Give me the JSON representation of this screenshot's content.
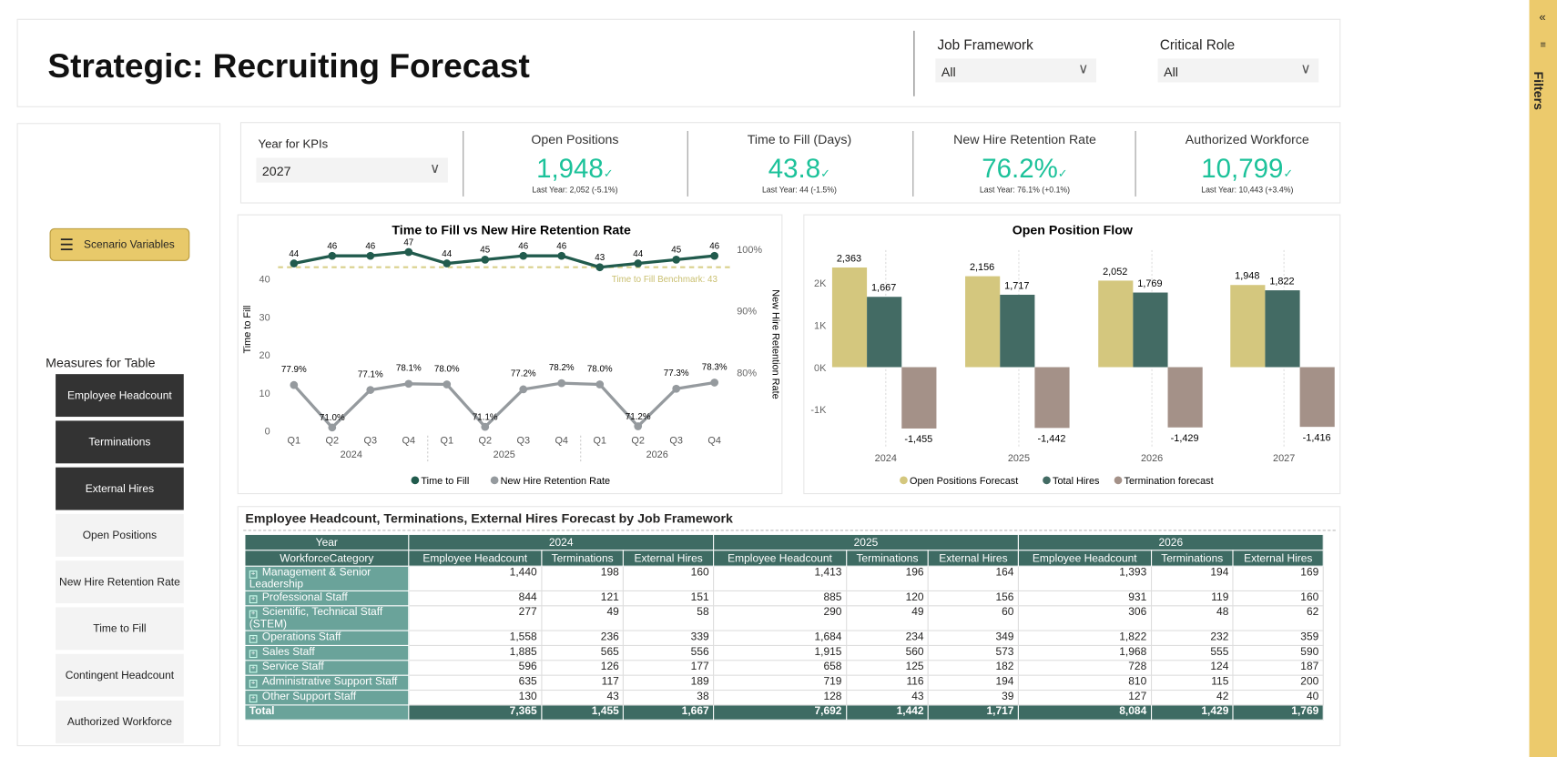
{
  "header": {
    "title": "Strategic: Recruiting Forecast",
    "filters": [
      {
        "label": "Job Framework",
        "value": "All"
      },
      {
        "label": "Critical Role",
        "value": "All"
      }
    ]
  },
  "filter_pane": {
    "label": "Filters",
    "collapse": "«"
  },
  "left": {
    "scenario_label": "Scenario Variables",
    "measures_title": "Measures for Table",
    "measures": [
      {
        "label": "Employee Headcount",
        "on": true
      },
      {
        "label": "Terminations",
        "on": true
      },
      {
        "label": "External Hires",
        "on": true
      },
      {
        "label": "Open Positions",
        "on": false
      },
      {
        "label": "New Hire Retention Rate",
        "on": false
      },
      {
        "label": "Time to Fill",
        "on": false
      },
      {
        "label": "Contingent Headcount",
        "on": false
      },
      {
        "label": "Authorized Workforce",
        "on": false
      }
    ]
  },
  "kpis": {
    "year_label": "Year for KPIs",
    "year_value": "2027",
    "cards": [
      {
        "title": "Open Positions",
        "value": "1,948",
        "sub": "Last Year: 2,052 (-5.1%)"
      },
      {
        "title": "Time to Fill (Days)",
        "value": "43.8",
        "sub": "Last Year: 44 (-1.5%)"
      },
      {
        "title": "New Hire Retention Rate",
        "value": "76.2%",
        "sub": "Last Year: 76.1% (+0.1%)"
      },
      {
        "title": "Authorized Workforce",
        "value": "10,799",
        "sub": "Last Year: 10,443 (+3.4%)"
      }
    ]
  },
  "chart_data": [
    {
      "type": "line",
      "title": "Time to Fill vs New Hire Retention Rate",
      "ylabel": "Time to Fill",
      "y2label": "New Hire Retention Rate",
      "x": [
        "Q1",
        "Q2",
        "Q3",
        "Q4",
        "Q1",
        "Q2",
        "Q3",
        "Q4",
        "Q1",
        "Q2",
        "Q3",
        "Q4"
      ],
      "x_groups": [
        "2024",
        "2025",
        "2026"
      ],
      "yticks": [
        "0",
        "10",
        "20",
        "30",
        "40"
      ],
      "y2ticks": [
        "80%",
        "90%",
        "100%"
      ],
      "benchmark": 43,
      "benchmark_label": "Time to Fill Benchmark: 43",
      "series": [
        {
          "name": "Time to Fill",
          "color": "#215b4d",
          "values": [
            44,
            46,
            46,
            47,
            44,
            45,
            46,
            46,
            43,
            44,
            45,
            46
          ]
        },
        {
          "name": "New Hire Retention Rate",
          "color": "#959a9e",
          "values": [
            77.9,
            71.0,
            77.1,
            78.1,
            78.0,
            71.1,
            77.2,
            78.2,
            78.0,
            71.2,
            77.3,
            78.3
          ],
          "labels": [
            "77.9%",
            "71.0%",
            "77.1%",
            "78.1%",
            "78.0%",
            "71.1%",
            "77.2%",
            "78.2%",
            "78.0%",
            "71.2%",
            "77.3%",
            "78.3%"
          ]
        }
      ]
    },
    {
      "type": "bar",
      "title": "Open Position Flow",
      "categories": [
        "2024",
        "2025",
        "2026",
        "2027"
      ],
      "yticks": [
        "-1K",
        "0K",
        "1K",
        "2K"
      ],
      "ylim": [
        -1700,
        2600
      ],
      "series": [
        {
          "name": "Open Positions Forecast",
          "color": "#d4c77e",
          "values": [
            2363,
            2156,
            2052,
            1948
          ]
        },
        {
          "name": "Total Hires",
          "color": "#436b64",
          "values": [
            1667,
            1717,
            1769,
            1822
          ]
        },
        {
          "name": "Termination forecast",
          "color": "#a49188",
          "values": [
            -1455,
            -1442,
            -1429,
            -1416
          ]
        }
      ]
    }
  ],
  "table": {
    "title": "Employee Headcount, Terminations, External Hires Forecast by Job Framework",
    "year_label": "Year",
    "cat_label": "WorkforceCategory",
    "years": [
      "2024",
      "2025",
      "2026"
    ],
    "measures": [
      "Employee Headcount",
      "Terminations",
      "External Hires"
    ],
    "rows": [
      {
        "cat": "Management & Senior Leadership",
        "v": [
          "1,440",
          "198",
          "160",
          "1,413",
          "196",
          "164",
          "1,393",
          "194",
          "169"
        ]
      },
      {
        "cat": "Professional Staff",
        "v": [
          "844",
          "121",
          "151",
          "885",
          "120",
          "156",
          "931",
          "119",
          "160"
        ]
      },
      {
        "cat": "Scientific, Technical Staff (STEM)",
        "v": [
          "277",
          "49",
          "58",
          "290",
          "49",
          "60",
          "306",
          "48",
          "62"
        ]
      },
      {
        "cat": "Operations Staff",
        "v": [
          "1,558",
          "236",
          "339",
          "1,684",
          "234",
          "349",
          "1,822",
          "232",
          "359"
        ]
      },
      {
        "cat": "Sales Staff",
        "v": [
          "1,885",
          "565",
          "556",
          "1,915",
          "560",
          "573",
          "1,968",
          "555",
          "590"
        ]
      },
      {
        "cat": "Service Staff",
        "v": [
          "596",
          "126",
          "177",
          "658",
          "125",
          "182",
          "728",
          "124",
          "187"
        ]
      },
      {
        "cat": "Administrative Support Staff",
        "v": [
          "635",
          "117",
          "189",
          "719",
          "116",
          "194",
          "810",
          "115",
          "200"
        ]
      },
      {
        "cat": "Other Support Staff",
        "v": [
          "130",
          "43",
          "38",
          "128",
          "43",
          "39",
          "127",
          "42",
          "40"
        ]
      }
    ],
    "total": {
      "cat": "Total",
      "v": [
        "7,365",
        "1,455",
        "1,667",
        "7,692",
        "1,442",
        "1,717",
        "8,084",
        "1,429",
        "1,769"
      ]
    }
  }
}
